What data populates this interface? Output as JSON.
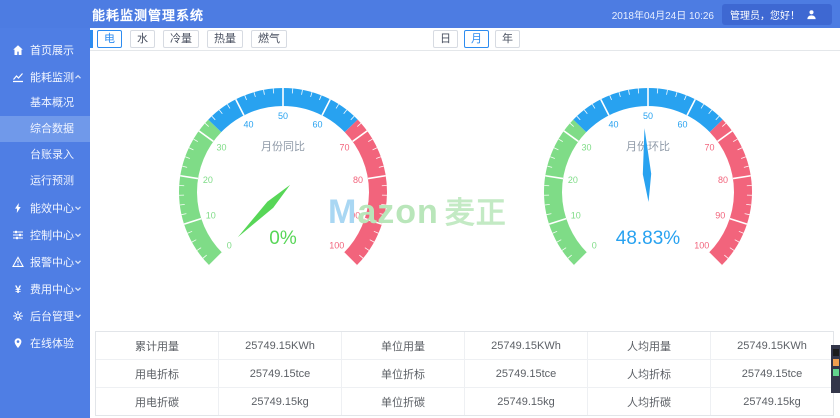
{
  "header": {
    "title": "能耗监测管理系统",
    "datetime": "2018年04月24日 10:26",
    "user_greeting": "管理员，您好！"
  },
  "sidebar": {
    "items": [
      {
        "key": "home",
        "label": "首页展示",
        "icon": "home",
        "expandable": false
      },
      {
        "key": "energy-monitor",
        "label": "能耗监测",
        "icon": "chart",
        "expandable": true,
        "expanded": true,
        "children": [
          "基本概况",
          "综合数据",
          "台账录入",
          "运行预测"
        ],
        "active_child": "综合数据"
      },
      {
        "key": "efficiency-center",
        "label": "能效中心",
        "icon": "energy",
        "expandable": true
      },
      {
        "key": "control-center",
        "label": "控制中心",
        "icon": "control",
        "expandable": true
      },
      {
        "key": "alarm-center",
        "label": "报警中心",
        "icon": "alarm",
        "expandable": true
      },
      {
        "key": "cost-center",
        "label": "费用中心",
        "icon": "cost",
        "expandable": true
      },
      {
        "key": "admin",
        "label": "后台管理",
        "icon": "settings",
        "expandable": true
      },
      {
        "key": "online",
        "label": "在线体验",
        "icon": "location",
        "expandable": false
      }
    ]
  },
  "toolbar": {
    "tabs": [
      {
        "label": "电",
        "active": true
      },
      {
        "label": "水",
        "active": false
      },
      {
        "label": "冷量",
        "active": false
      },
      {
        "label": "热量",
        "active": false
      },
      {
        "label": "燃气",
        "active": false
      }
    ],
    "periods": [
      {
        "label": "日",
        "active": false
      },
      {
        "label": "月",
        "active": true
      },
      {
        "label": "年",
        "active": false
      }
    ]
  },
  "watermark": {
    "m": "M",
    "azon": "azon",
    "cjk": "麦正"
  },
  "chart_data": [
    {
      "type": "gauge",
      "title": "月份同比",
      "value": 0,
      "value_label": "0%",
      "min": 0,
      "max": 100,
      "start_angle": 225,
      "end_angle": -45,
      "tick_interval": 10,
      "tick_labels": [
        0,
        10,
        20,
        30,
        40,
        50,
        60,
        70,
        80,
        90,
        100
      ],
      "segments": [
        {
          "upto": 33,
          "color": "#7fdc87"
        },
        {
          "upto": 67,
          "color": "#28a2f0"
        },
        {
          "upto": 100,
          "color": "#f2647c"
        }
      ],
      "needle_color": "#57d657",
      "value_color": "#57d657",
      "title_color": "#8f9aa8"
    },
    {
      "type": "gauge",
      "title": "月份环比",
      "value": 48.83,
      "value_label": "48.83%",
      "min": 0,
      "max": 100,
      "start_angle": 225,
      "end_angle": -45,
      "tick_interval": 10,
      "tick_labels": [
        0,
        10,
        20,
        30,
        40,
        50,
        60,
        70,
        80,
        90,
        100
      ],
      "segments": [
        {
          "upto": 33,
          "color": "#7fdc87"
        },
        {
          "upto": 67,
          "color": "#28a2f0"
        },
        {
          "upto": 100,
          "color": "#f2647c"
        }
      ],
      "needle_color": "#28a2f0",
      "value_color": "#28a2f0",
      "title_color": "#8f9aa8"
    }
  ],
  "table": {
    "rows": [
      [
        "累计用量",
        "25749.15KWh",
        "单位用量",
        "25749.15KWh",
        "人均用量",
        "25749.15KWh"
      ],
      [
        "用电折标",
        "25749.15tce",
        "单位折标",
        "25749.15tce",
        "人均折标",
        "25749.15tce"
      ],
      [
        "用电折碳",
        "25749.15kg",
        "单位折碳",
        "25749.15kg",
        "人均折碳",
        "25749.15kg"
      ]
    ]
  },
  "widget": {
    "colors": [
      "#1b1b1b",
      "#f0a050",
      "#62d38d"
    ]
  },
  "colors": {
    "accent": "#2d8cf0",
    "header_bg": "#4d7ce2",
    "sidebar_bg": "#4f7ee4",
    "sidebar_active_bg": "#7099ea"
  }
}
